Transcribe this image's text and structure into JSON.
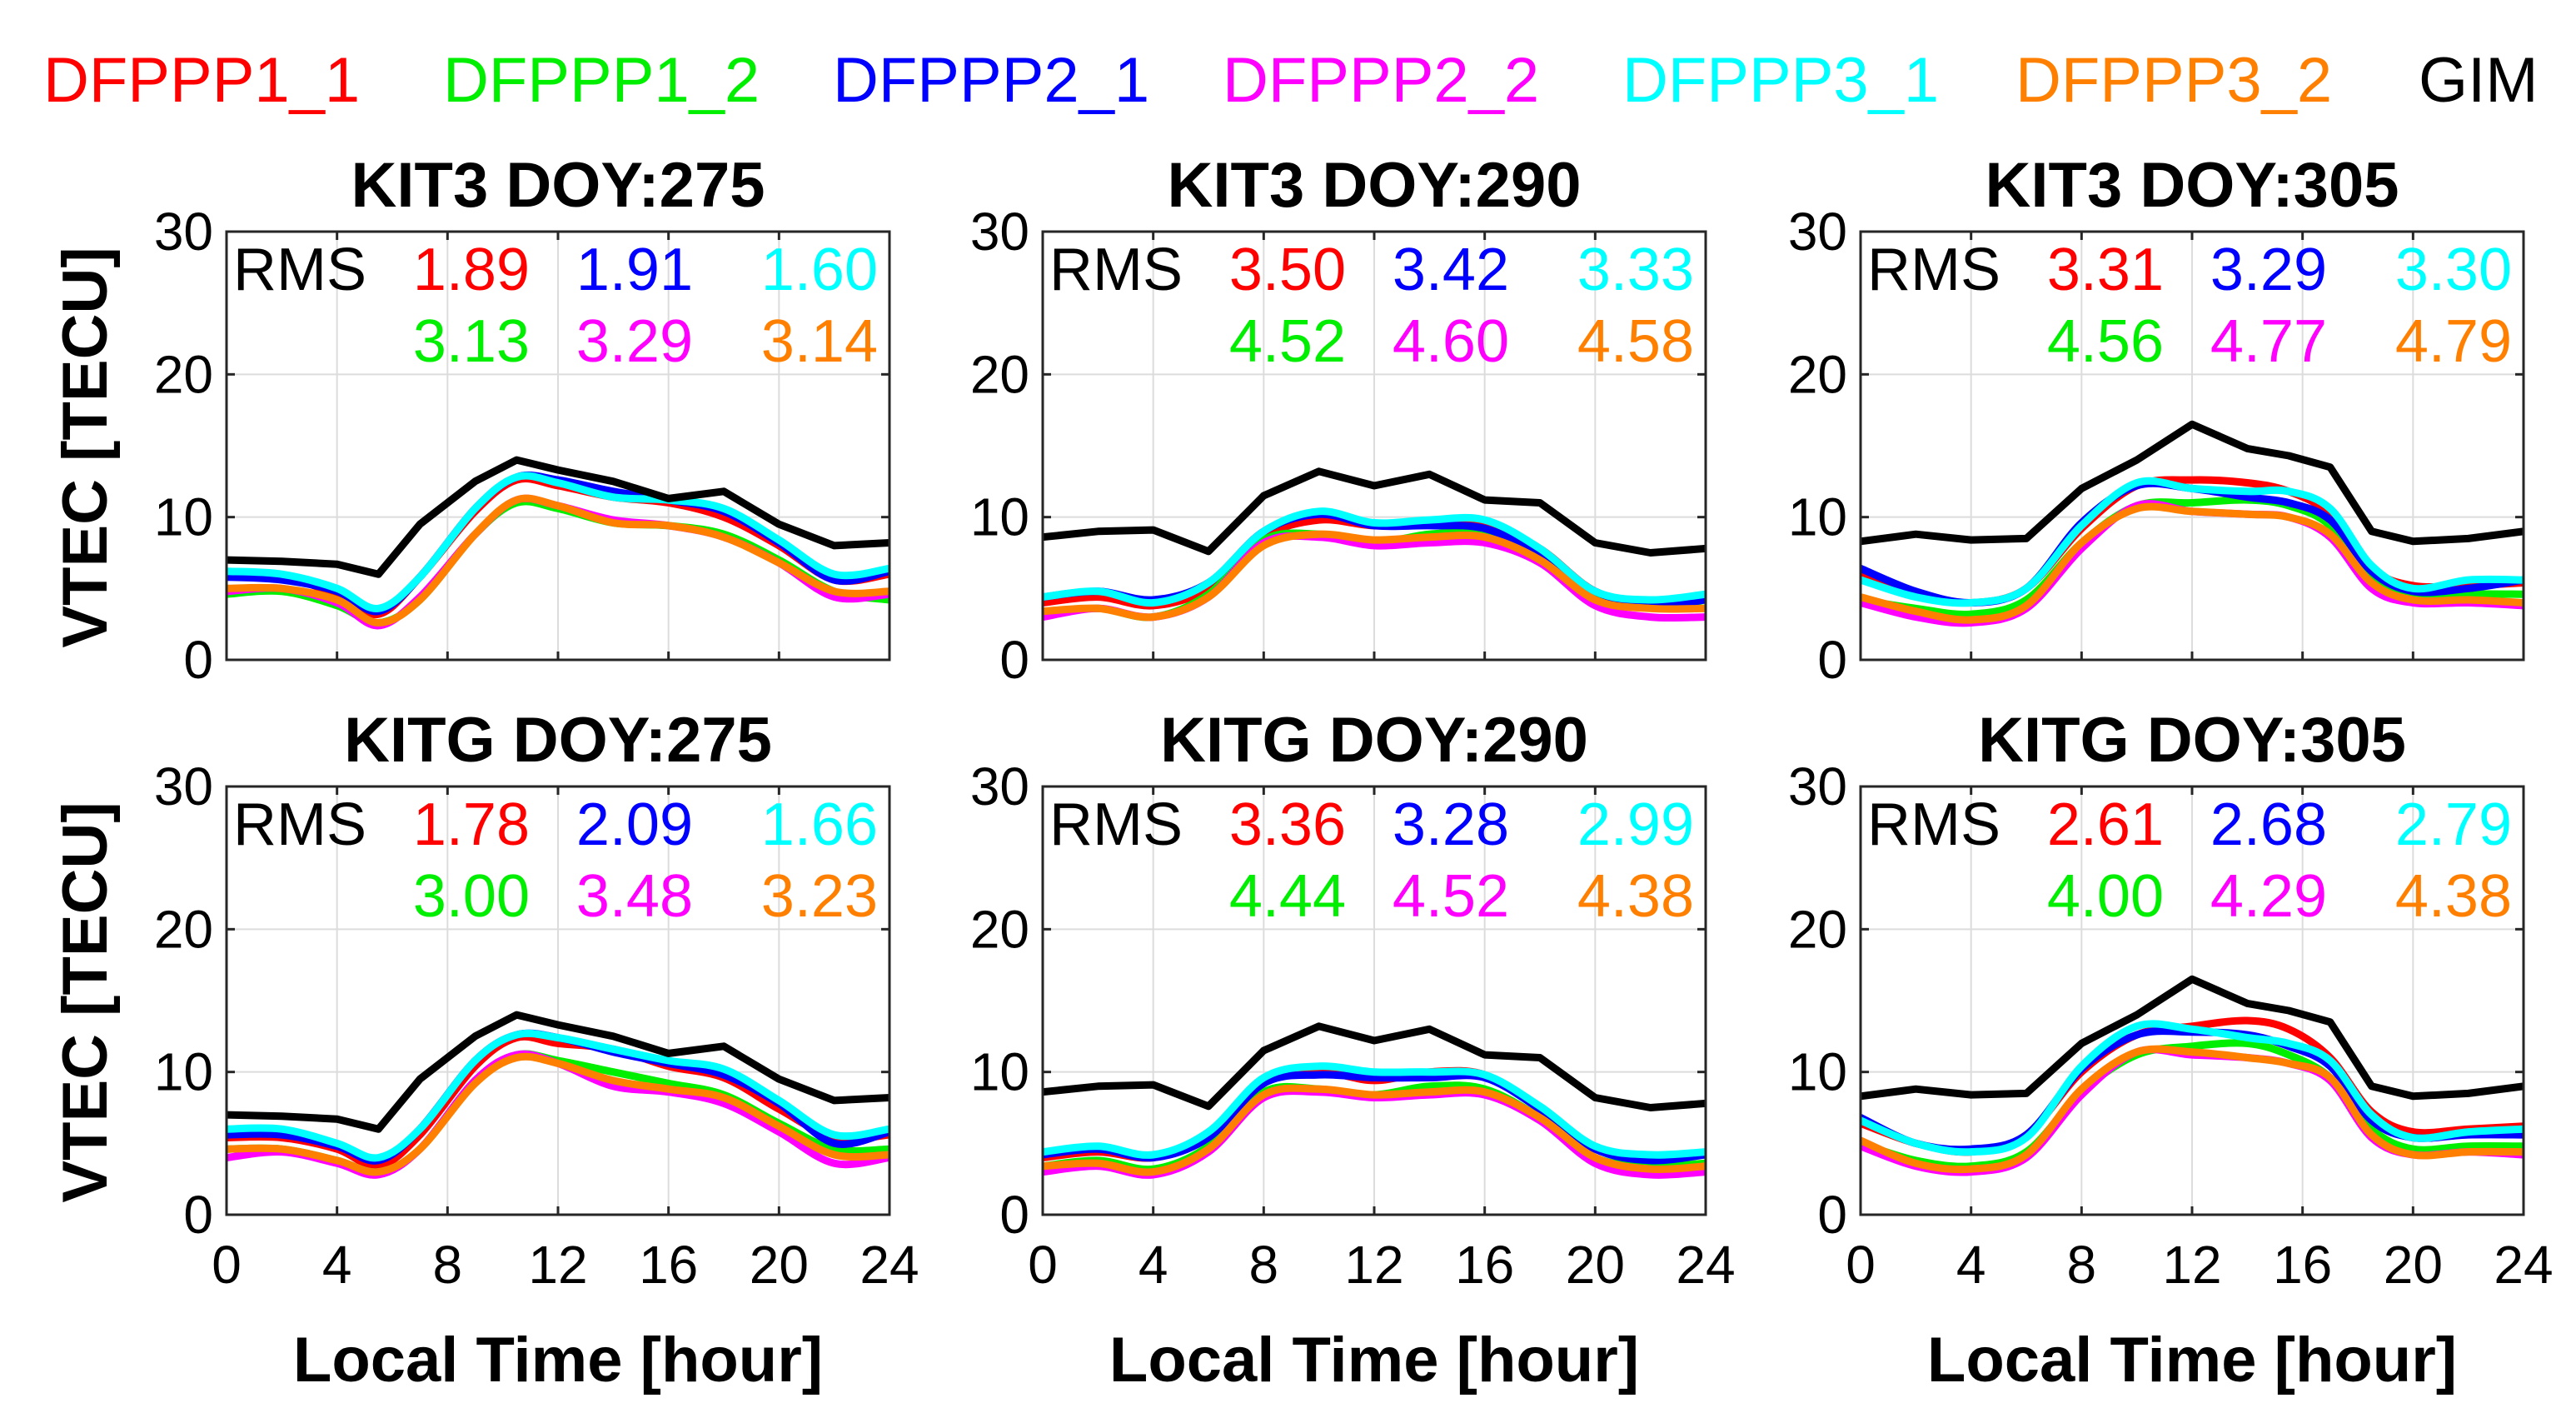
{
  "chart_data": {
    "type": "line",
    "legend": [
      {
        "name": "DFPPP1_1",
        "color": "#ff0000"
      },
      {
        "name": "DFPPP1_2",
        "color": "#00ee00"
      },
      {
        "name": "DFPPP2_1",
        "color": "#0000ff"
      },
      {
        "name": "DFPPP2_2",
        "color": "#ff00ff"
      },
      {
        "name": "DFPPP3_1",
        "color": "#00ffff"
      },
      {
        "name": "DFPPP3_2",
        "color": "#ff8000"
      },
      {
        "name": "GIM",
        "color": "#000000"
      }
    ],
    "xlabel": "Local Time [hour]",
    "ylabel": "VTEC [TECU]",
    "xlim": [
      0,
      24
    ],
    "ylim": [
      0,
      30
    ],
    "xticks": [
      "0",
      "4",
      "8",
      "12",
      "16",
      "20",
      "24"
    ],
    "yticks": [
      "0",
      "10",
      "20",
      "30"
    ],
    "grid": true,
    "rms_label": "RMS",
    "panels": [
      {
        "title": "KIT3 DOY:275",
        "rms": [
          "1.89",
          "1.91",
          "1.60",
          "3.13",
          "3.29",
          "3.14"
        ],
        "x": [
          0,
          2,
          4,
          5.5,
          7,
          9,
          10.5,
          12,
          14,
          16,
          18,
          20,
          22,
          24
        ],
        "series": [
          {
            "name": "DFPPP1_1",
            "values": [
              5.8,
              5.8,
              4.6,
              3.2,
              5.8,
              10.4,
              12.6,
              12.2,
              11.4,
              11.0,
              10.0,
              8.0,
              5.6,
              6.0
            ]
          },
          {
            "name": "DFPPP1_2",
            "values": [
              4.6,
              4.8,
              3.8,
              2.6,
              4.2,
              8.8,
              11.0,
              10.6,
              9.6,
              9.4,
              8.8,
              7.0,
              4.8,
              4.2
            ]
          },
          {
            "name": "DFPPP2_1",
            "values": [
              5.8,
              5.6,
              4.8,
              3.4,
              5.8,
              10.6,
              12.8,
              12.6,
              11.8,
              11.2,
              10.4,
              8.2,
              5.6,
              6.2
            ]
          },
          {
            "name": "DFPPP2_2",
            "values": [
              4.8,
              5.0,
              4.0,
              2.4,
              4.4,
              8.8,
              11.2,
              10.8,
              9.8,
              9.4,
              8.6,
              6.8,
              4.4,
              4.6
            ]
          },
          {
            "name": "DFPPP3_1",
            "values": [
              6.2,
              6.0,
              5.0,
              3.6,
              5.8,
              10.6,
              12.8,
              12.4,
              11.4,
              11.2,
              10.6,
              8.4,
              6.0,
              6.4
            ]
          },
          {
            "name": "DFPPP3_2",
            "values": [
              5.0,
              5.0,
              4.2,
              2.6,
              4.2,
              8.8,
              11.2,
              10.8,
              9.6,
              9.4,
              8.6,
              6.8,
              4.8,
              4.8
            ]
          },
          {
            "name": "GIM",
            "values": [
              7.0,
              6.9,
              6.7,
              6.0,
              9.5,
              12.5,
              14.0,
              13.3,
              12.5,
              11.3,
              11.8,
              9.5,
              8.0,
              8.2
            ]
          }
        ]
      },
      {
        "title": "KIT3 DOY:290",
        "rms": [
          "3.50",
          "3.42",
          "3.33",
          "4.52",
          "4.60",
          "4.58"
        ],
        "x": [
          0,
          2,
          4,
          6,
          8,
          10,
          12,
          14,
          16,
          18,
          20,
          22,
          24
        ],
        "series": [
          {
            "name": "DFPPP1_1",
            "values": [
              4.0,
              4.4,
              3.8,
              5.0,
              8.6,
              9.8,
              9.4,
              9.6,
              9.6,
              7.8,
              4.8,
              4.0,
              4.2
            ]
          },
          {
            "name": "DFPPP1_2",
            "values": [
              3.2,
              3.6,
              3.0,
              4.6,
              8.4,
              8.8,
              8.2,
              8.8,
              8.8,
              7.2,
              4.4,
              3.8,
              3.6
            ]
          },
          {
            "name": "DFPPP2_1",
            "values": [
              4.4,
              4.8,
              4.2,
              5.4,
              9.0,
              10.2,
              9.4,
              9.4,
              9.2,
              7.4,
              4.8,
              3.8,
              4.2
            ]
          },
          {
            "name": "DFPPP2_2",
            "values": [
              3.0,
              3.6,
              3.0,
              4.4,
              8.2,
              8.6,
              8.0,
              8.2,
              8.2,
              6.8,
              3.8,
              3.0,
              3.0
            ]
          },
          {
            "name": "DFPPP3_1",
            "values": [
              4.4,
              4.8,
              4.0,
              5.4,
              9.0,
              10.4,
              9.6,
              9.8,
              9.8,
              7.8,
              4.8,
              4.2,
              4.6
            ]
          },
          {
            "name": "DFPPP3_2",
            "values": [
              3.4,
              3.6,
              3.0,
              4.4,
              8.0,
              8.8,
              8.4,
              8.6,
              8.6,
              7.0,
              4.2,
              3.6,
              3.6
            ]
          },
          {
            "name": "GIM",
            "values": [
              8.6,
              9.0,
              9.1,
              7.6,
              11.5,
              13.2,
              12.2,
              13.0,
              11.2,
              11.0,
              8.2,
              7.5,
              7.8
            ]
          }
        ]
      },
      {
        "title": "KIT3 DOY:305",
        "rms": [
          "3.31",
          "3.29",
          "3.30",
          "4.56",
          "4.77",
          "4.79"
        ],
        "x": [
          0,
          2,
          4,
          6,
          8,
          10,
          12,
          14,
          15.5,
          17,
          18.5,
          20,
          22,
          24
        ],
        "series": [
          {
            "name": "DFPPP1_1",
            "values": [
              6.0,
              4.6,
              4.0,
              5.0,
              9.2,
              12.2,
              12.6,
              12.4,
              11.8,
              10.2,
              6.4,
              5.2,
              5.2,
              5.4
            ]
          },
          {
            "name": "DFPPP1_2",
            "values": [
              4.2,
              3.6,
              3.2,
              4.2,
              8.2,
              10.8,
              11.0,
              11.2,
              10.8,
              9.4,
              5.6,
              4.4,
              4.6,
              4.6
            ]
          },
          {
            "name": "DFPPP2_1",
            "values": [
              6.4,
              4.8,
              4.0,
              5.0,
              9.6,
              12.2,
              12.0,
              11.4,
              11.0,
              9.8,
              6.2,
              4.8,
              5.0,
              5.6
            ]
          },
          {
            "name": "DFPPP2_2",
            "values": [
              4.0,
              3.0,
              2.6,
              3.6,
              7.8,
              10.8,
              10.4,
              10.2,
              10.0,
              8.6,
              5.0,
              4.0,
              4.0,
              3.8
            ]
          },
          {
            "name": "DFPPP3_1",
            "values": [
              5.6,
              4.4,
              4.0,
              5.0,
              9.4,
              12.4,
              12.0,
              11.8,
              11.8,
              10.6,
              6.6,
              5.0,
              5.6,
              5.6
            ]
          },
          {
            "name": "DFPPP3_2",
            "values": [
              4.4,
              3.4,
              2.8,
              3.8,
              8.2,
              10.6,
              10.4,
              10.2,
              10.0,
              8.8,
              5.4,
              4.2,
              4.2,
              4.0
            ]
          },
          {
            "name": "GIM",
            "values": [
              8.3,
              8.8,
              8.4,
              8.5,
              12.0,
              14.0,
              16.5,
              14.8,
              14.3,
              13.5,
              9.0,
              8.3,
              8.5,
              9.0
            ]
          }
        ]
      },
      {
        "title": "KITG DOY:275",
        "rms": [
          "1.78",
          "2.09",
          "1.66",
          "3.00",
          "3.48",
          "3.23"
        ],
        "x": [
          0,
          2,
          4,
          5.5,
          7,
          9,
          10.5,
          12,
          14,
          16,
          18,
          20,
          22,
          24
        ],
        "series": [
          {
            "name": "DFPPP1_1",
            "values": [
              5.4,
              5.4,
              4.6,
              3.4,
              5.6,
              10.4,
              12.4,
              12.0,
              11.6,
              10.4,
              9.6,
              7.4,
              5.4,
              5.6
            ]
          },
          {
            "name": "DFPPP1_2",
            "values": [
              4.6,
              4.6,
              3.8,
              3.0,
              4.6,
              9.4,
              11.2,
              10.8,
              10.0,
              9.2,
              8.4,
              6.4,
              4.6,
              4.6
            ]
          },
          {
            "name": "DFPPP2_1",
            "values": [
              5.6,
              5.6,
              4.8,
              3.8,
              6.0,
              10.8,
              12.6,
              12.4,
              11.4,
              10.6,
              9.8,
              7.8,
              5.0,
              5.8
            ]
          },
          {
            "name": "DFPPP2_2",
            "values": [
              4.0,
              4.4,
              3.6,
              2.8,
              4.6,
              9.4,
              11.2,
              10.6,
              9.0,
              8.6,
              7.8,
              5.8,
              3.6,
              4.0
            ]
          },
          {
            "name": "DFPPP3_1",
            "values": [
              6.0,
              6.0,
              5.0,
              4.0,
              6.0,
              10.8,
              12.6,
              12.4,
              11.6,
              10.8,
              10.2,
              8.0,
              5.6,
              6.0
            ]
          },
          {
            "name": "DFPPP3_2",
            "values": [
              4.6,
              4.6,
              3.8,
              3.0,
              4.6,
              9.2,
              11.0,
              10.6,
              9.4,
              8.8,
              8.2,
              6.2,
              4.2,
              4.2
            ]
          },
          {
            "name": "GIM",
            "values": [
              7.0,
              6.9,
              6.7,
              6.0,
              9.5,
              12.5,
              14.0,
              13.3,
              12.5,
              11.3,
              11.8,
              9.5,
              8.0,
              8.2
            ]
          }
        ]
      },
      {
        "title": "KITG DOY:290",
        "rms": [
          "3.36",
          "3.28",
          "2.99",
          "4.44",
          "4.52",
          "4.38"
        ],
        "x": [
          0,
          2,
          4,
          6,
          8,
          10,
          12,
          14,
          16,
          18,
          20,
          22,
          24
        ],
        "series": [
          {
            "name": "DFPPP1_1",
            "values": [
              4.0,
              4.4,
              4.0,
              5.4,
              9.2,
              10.0,
              9.4,
              10.0,
              9.8,
              7.4,
              4.6,
              4.0,
              4.2
            ]
          },
          {
            "name": "DFPPP1_2",
            "values": [
              3.4,
              3.8,
              3.2,
              4.8,
              8.6,
              8.8,
              8.4,
              9.0,
              8.8,
              6.8,
              4.0,
              3.4,
              3.6
            ]
          },
          {
            "name": "DFPPP2_1",
            "values": [
              4.2,
              4.6,
              4.0,
              5.4,
              9.2,
              9.8,
              9.6,
              9.6,
              9.6,
              7.4,
              4.6,
              3.8,
              4.2
            ]
          },
          {
            "name": "DFPPP2_2",
            "values": [
              3.0,
              3.4,
              2.8,
              4.4,
              8.2,
              8.6,
              8.2,
              8.4,
              8.4,
              6.6,
              3.6,
              2.8,
              3.0
            ]
          },
          {
            "name": "DFPPP3_1",
            "values": [
              4.4,
              4.8,
              4.2,
              5.8,
              9.6,
              10.4,
              10.0,
              10.0,
              9.8,
              7.6,
              4.8,
              4.2,
              4.4
            ]
          },
          {
            "name": "DFPPP3_2",
            "values": [
              3.4,
              3.6,
              3.0,
              4.6,
              8.4,
              8.8,
              8.4,
              8.6,
              8.6,
              6.8,
              4.0,
              3.2,
              3.4
            ]
          },
          {
            "name": "GIM",
            "values": [
              8.6,
              9.0,
              9.1,
              7.6,
              11.5,
              13.2,
              12.2,
              13.0,
              11.2,
              11.0,
              8.2,
              7.5,
              7.8
            ]
          }
        ]
      },
      {
        "title": "KITG DOY:305",
        "rms": [
          "2.61",
          "2.68",
          "2.79",
          "4.00",
          "4.29",
          "4.38"
        ],
        "x": [
          0,
          2,
          4,
          6,
          8,
          10,
          12,
          14,
          15.5,
          17,
          18.5,
          20,
          22,
          24
        ],
        "series": [
          {
            "name": "DFPPP1_1",
            "values": [
              6.4,
              5.0,
              4.4,
              5.6,
              10.0,
              12.6,
              13.2,
              13.6,
              13.0,
              11.0,
              7.2,
              5.8,
              6.0,
              6.2
            ]
          },
          {
            "name": "DFPPP1_2",
            "values": [
              5.0,
              3.8,
              3.4,
              4.4,
              8.6,
              11.2,
              11.8,
              12.0,
              11.2,
              9.6,
              6.0,
              4.6,
              4.8,
              4.8
            ]
          },
          {
            "name": "DFPPP2_1",
            "values": [
              6.8,
              5.0,
              4.6,
              5.6,
              10.2,
              12.6,
              12.8,
              12.6,
              11.8,
              10.4,
              6.6,
              5.4,
              5.6,
              5.6
            ]
          },
          {
            "name": "DFPPP2_2",
            "values": [
              4.8,
              3.4,
              3.0,
              4.0,
              8.4,
              11.4,
              11.2,
              11.0,
              10.6,
              9.4,
              5.4,
              4.2,
              4.4,
              4.2
            ]
          },
          {
            "name": "DFPPP3_1",
            "values": [
              6.6,
              5.0,
              4.4,
              5.4,
              10.4,
              13.2,
              13.0,
              12.4,
              12.0,
              10.8,
              7.0,
              5.4,
              5.8,
              6.0
            ]
          },
          {
            "name": "DFPPP3_2",
            "values": [
              5.2,
              3.6,
              3.2,
              4.2,
              8.8,
              11.4,
              11.4,
              11.0,
              10.6,
              9.6,
              5.6,
              4.2,
              4.4,
              4.4
            ]
          },
          {
            "name": "GIM",
            "values": [
              8.3,
              8.8,
              8.4,
              8.5,
              12.0,
              14.0,
              16.5,
              14.8,
              14.3,
              13.5,
              9.0,
              8.3,
              8.5,
              9.0
            ]
          }
        ]
      }
    ]
  }
}
